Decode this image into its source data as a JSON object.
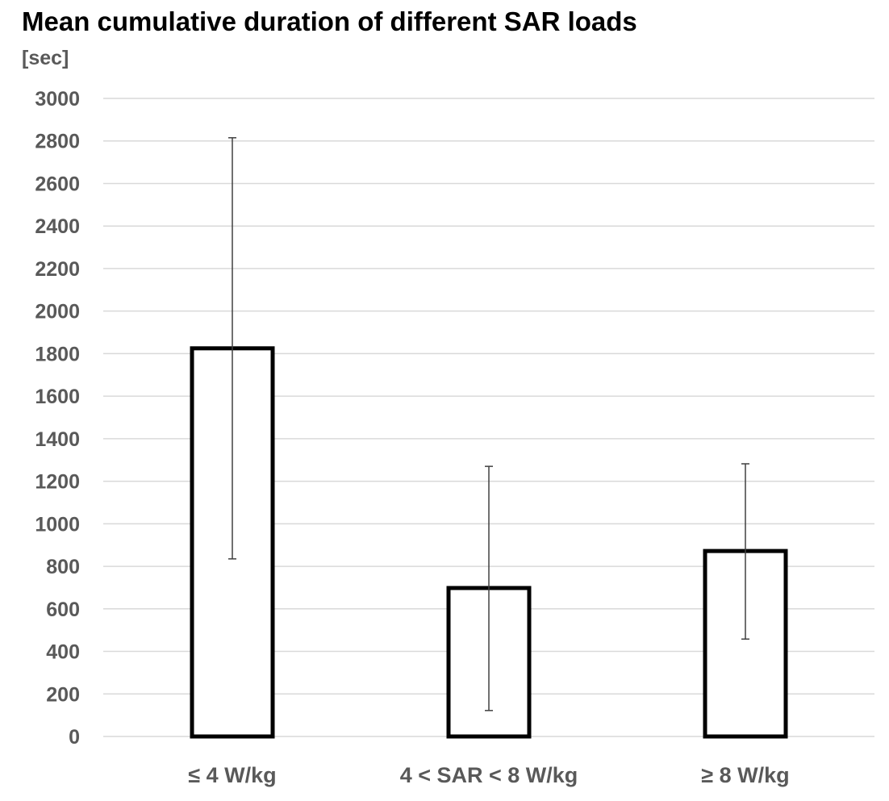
{
  "chart_data": {
    "type": "bar",
    "title": "Mean cumulative duration of different SAR loads",
    "ylabel": "[sec]",
    "xlabel": "",
    "categories": [
      "≤ 4 W/kg",
      "4 < SAR < 8 W/kg",
      "≥ 8 W/kg"
    ],
    "values": [
      1825,
      698,
      872
    ],
    "error_low": [
      835,
      122,
      458
    ],
    "error_high": [
      2815,
      1270,
      1282
    ],
    "ylim": [
      0,
      3000
    ],
    "yticks": [
      0,
      200,
      400,
      600,
      800,
      1000,
      1200,
      1400,
      1600,
      1800,
      2000,
      2200,
      2400,
      2600,
      2800,
      3000
    ],
    "grid": true,
    "legend": "none",
    "colors": {
      "bar_fill": "#ffffff",
      "bar_stroke": "#000000",
      "gridline": "#d9d9d9",
      "error_bar": "#404040",
      "tick_text": "#595959"
    }
  }
}
